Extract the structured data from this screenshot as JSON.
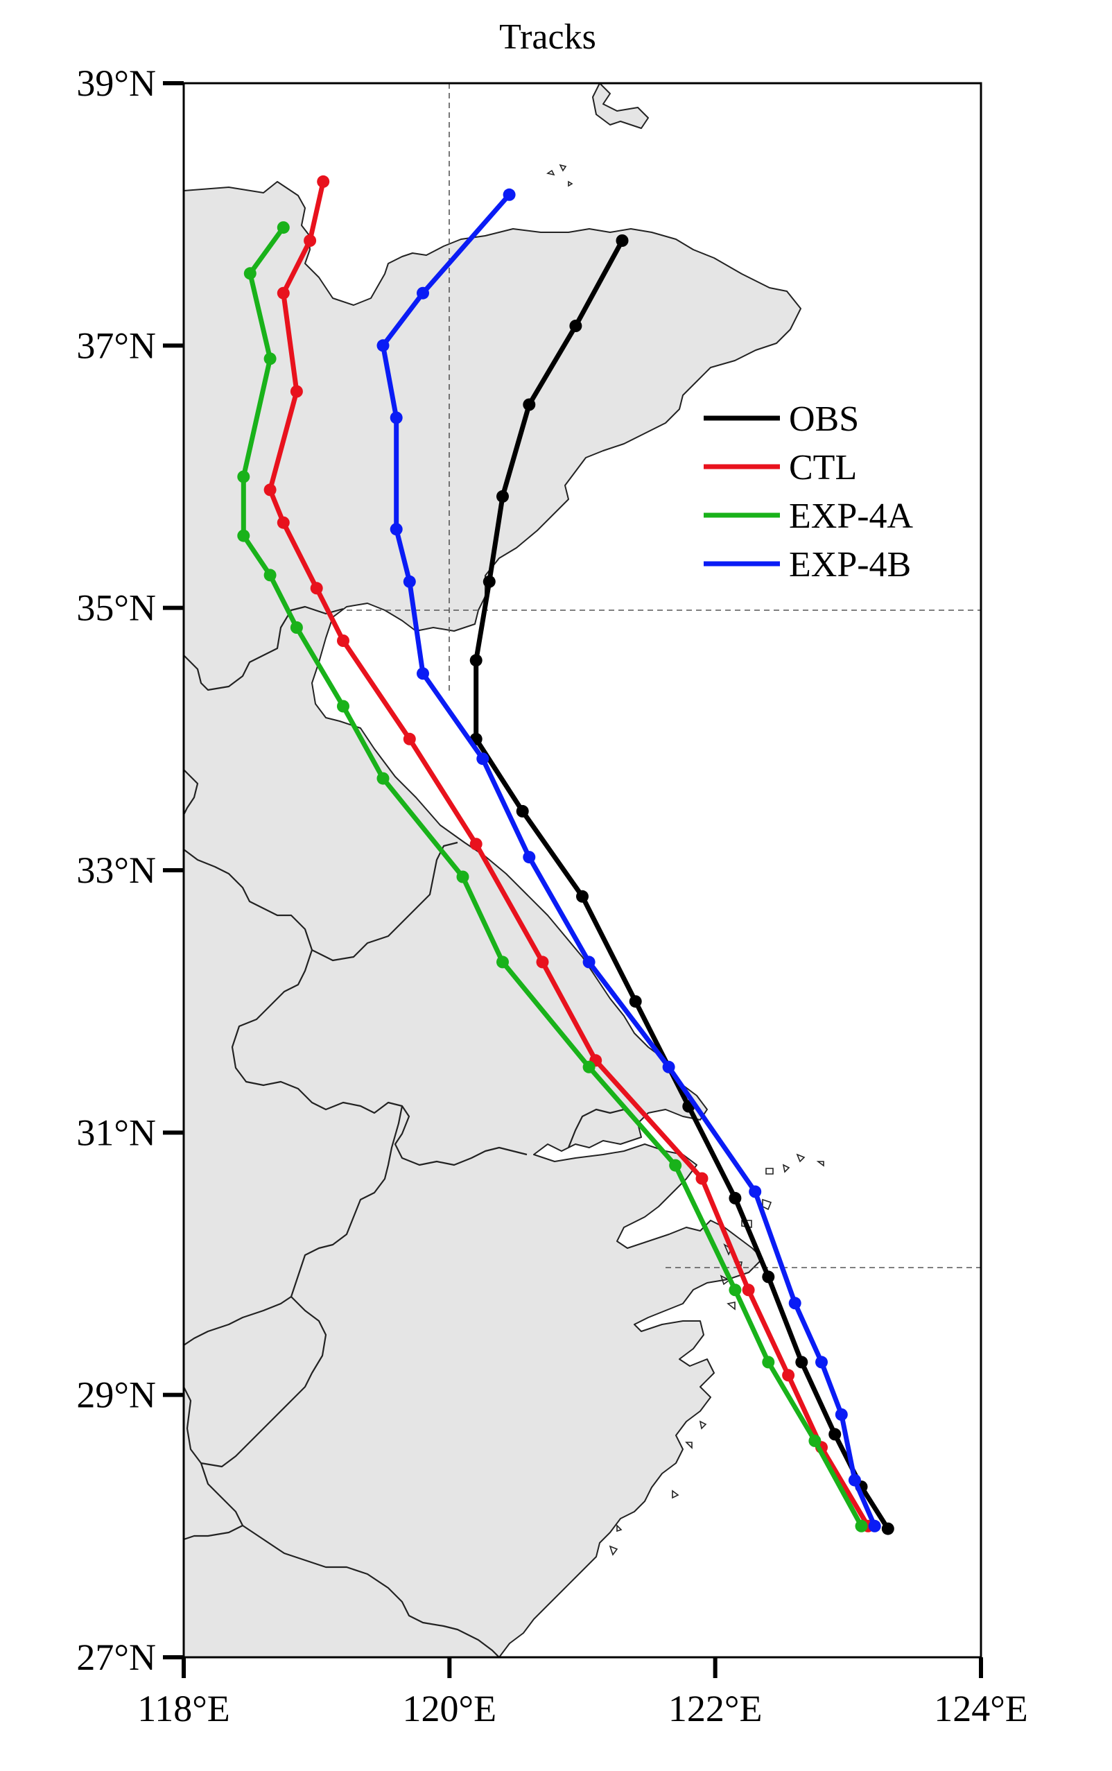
{
  "title": "Tracks",
  "axes": {
    "x_ticks": [
      {
        "value": 118,
        "label": "118°E"
      },
      {
        "value": 120,
        "label": "120°E"
      },
      {
        "value": 122,
        "label": "122°E"
      },
      {
        "value": 124,
        "label": "124°E"
      }
    ],
    "y_ticks": [
      {
        "value": 27,
        "label": "27°N"
      },
      {
        "value": 29,
        "label": "29°N"
      },
      {
        "value": 31,
        "label": "31°N"
      },
      {
        "value": 33,
        "label": "33°N"
      },
      {
        "value": 35,
        "label": "35°N"
      },
      {
        "value": 37,
        "label": "37°N"
      },
      {
        "value": 39,
        "label": "39°N"
      }
    ],
    "lon_range": [
      118,
      124
    ],
    "lat_range": [
      27,
      39
    ]
  },
  "legend": {
    "placement": "right, upper-middle",
    "items": [
      {
        "label": "OBS",
        "color": "#000000"
      },
      {
        "label": "CTL",
        "color": "#e8121d"
      },
      {
        "label": "EXP-4A",
        "color": "#19b21a"
      },
      {
        "label": "EXP-4B",
        "color": "#0a1cf5"
      }
    ]
  },
  "chart_data": {
    "type": "line",
    "title": "Tracks",
    "xlim": [
      118,
      124
    ],
    "ylim": [
      27,
      39
    ],
    "gridlines": {
      "lon": [
        120
      ],
      "lat": [
        35,
        30
      ]
    },
    "series": [
      {
        "name": "OBS",
        "color": "#000000",
        "points": [
          [
            123.3,
            27.98
          ],
          [
            123.1,
            28.3
          ],
          [
            122.9,
            28.7
          ],
          [
            122.65,
            29.25
          ],
          [
            122.4,
            29.9
          ],
          [
            122.15,
            30.5
          ],
          [
            121.8,
            31.2
          ],
          [
            121.4,
            32.0
          ],
          [
            121.0,
            32.8
          ],
          [
            120.55,
            33.45
          ],
          [
            120.2,
            34.0
          ],
          [
            120.2,
            34.6
          ],
          [
            120.3,
            35.2
          ],
          [
            120.4,
            35.85
          ],
          [
            120.6,
            36.55
          ],
          [
            120.95,
            37.15
          ],
          [
            121.3,
            37.8
          ]
        ]
      },
      {
        "name": "CTL",
        "color": "#e8121d",
        "points": [
          [
            123.15,
            28.0
          ],
          [
            122.8,
            28.6
          ],
          [
            122.55,
            29.15
          ],
          [
            122.25,
            29.8
          ],
          [
            121.9,
            30.65
          ],
          [
            121.1,
            31.55
          ],
          [
            120.7,
            32.3
          ],
          [
            120.2,
            33.2
          ],
          [
            119.7,
            34.0
          ],
          [
            119.2,
            34.75
          ],
          [
            119.0,
            35.15
          ],
          [
            118.75,
            35.65
          ],
          [
            118.65,
            35.9
          ],
          [
            118.85,
            36.65
          ],
          [
            118.75,
            37.4
          ],
          [
            118.95,
            37.8
          ],
          [
            119.05,
            38.25
          ]
        ]
      },
      {
        "name": "EXP-4A",
        "color": "#19b21a",
        "points": [
          [
            123.1,
            28.0
          ],
          [
            122.75,
            28.65
          ],
          [
            122.4,
            29.25
          ],
          [
            122.15,
            29.8
          ],
          [
            121.7,
            30.75
          ],
          [
            121.05,
            31.5
          ],
          [
            120.4,
            32.3
          ],
          [
            120.1,
            32.95
          ],
          [
            119.5,
            33.7
          ],
          [
            119.2,
            34.25
          ],
          [
            118.85,
            34.85
          ],
          [
            118.65,
            35.25
          ],
          [
            118.45,
            35.55
          ],
          [
            118.45,
            36.0
          ],
          [
            118.65,
            36.9
          ],
          [
            118.5,
            37.55
          ],
          [
            118.75,
            37.9
          ]
        ]
      },
      {
        "name": "EXP-4B",
        "color": "#0a1cf5",
        "points": [
          [
            123.2,
            28.0
          ],
          [
            123.05,
            28.35
          ],
          [
            122.95,
            28.85
          ],
          [
            122.8,
            29.25
          ],
          [
            122.6,
            29.7
          ],
          [
            122.3,
            30.55
          ],
          [
            121.65,
            31.5
          ],
          [
            121.05,
            32.3
          ],
          [
            120.6,
            33.1
          ],
          [
            120.25,
            33.85
          ],
          [
            119.8,
            34.5
          ],
          [
            119.7,
            35.2
          ],
          [
            119.6,
            35.6
          ],
          [
            119.6,
            36.45
          ],
          [
            119.5,
            37.0
          ],
          [
            119.8,
            37.4
          ],
          [
            120.45,
            38.15
          ]
        ]
      }
    ]
  }
}
